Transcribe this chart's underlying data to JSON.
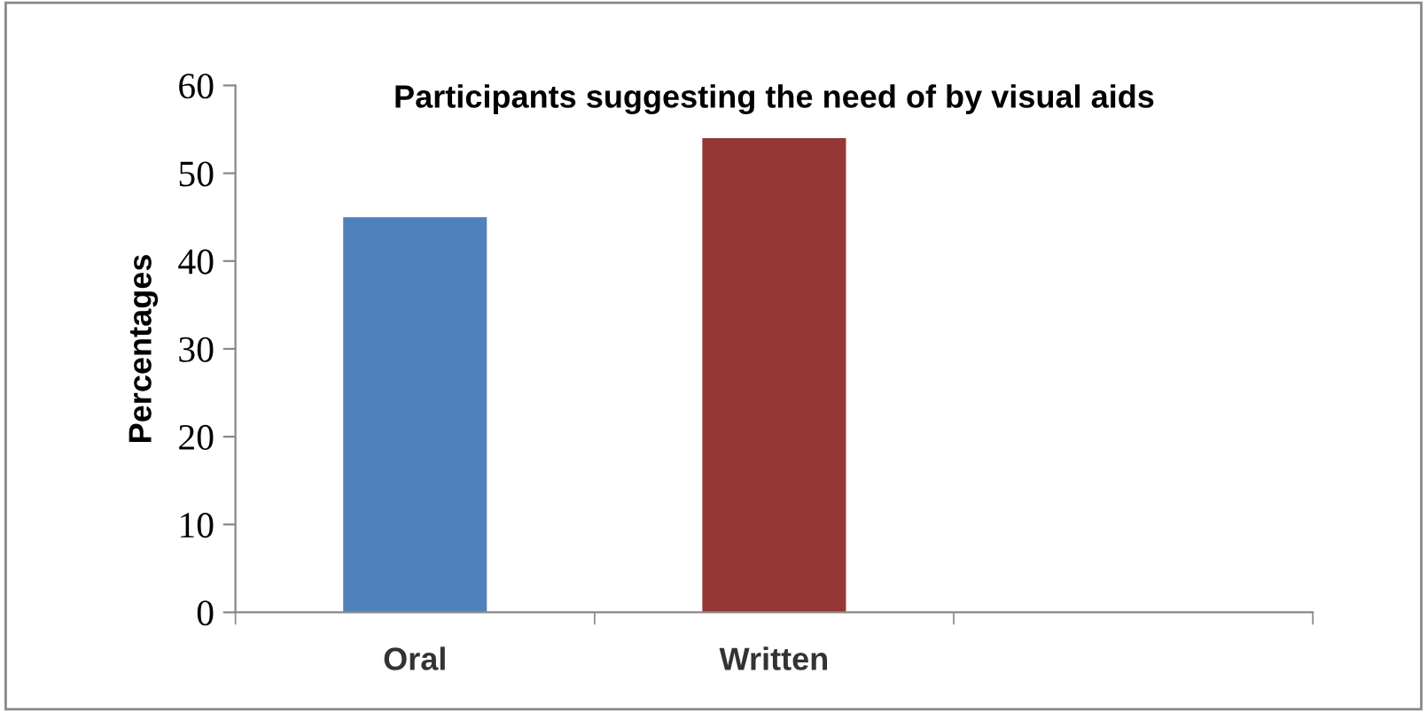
{
  "chart_data": {
    "type": "bar",
    "title": "Participants suggesting the need of by visual aids",
    "ylabel": "Percentages",
    "categories": [
      "Oral",
      "Written",
      null
    ],
    "values": [
      45,
      54,
      0
    ],
    "colors": [
      "#4f81bd",
      "#953735",
      null
    ],
    "ylim": [
      0,
      60
    ],
    "yticks": [
      0,
      10,
      20,
      30,
      40,
      50,
      60
    ],
    "grid": false,
    "legend": false
  }
}
